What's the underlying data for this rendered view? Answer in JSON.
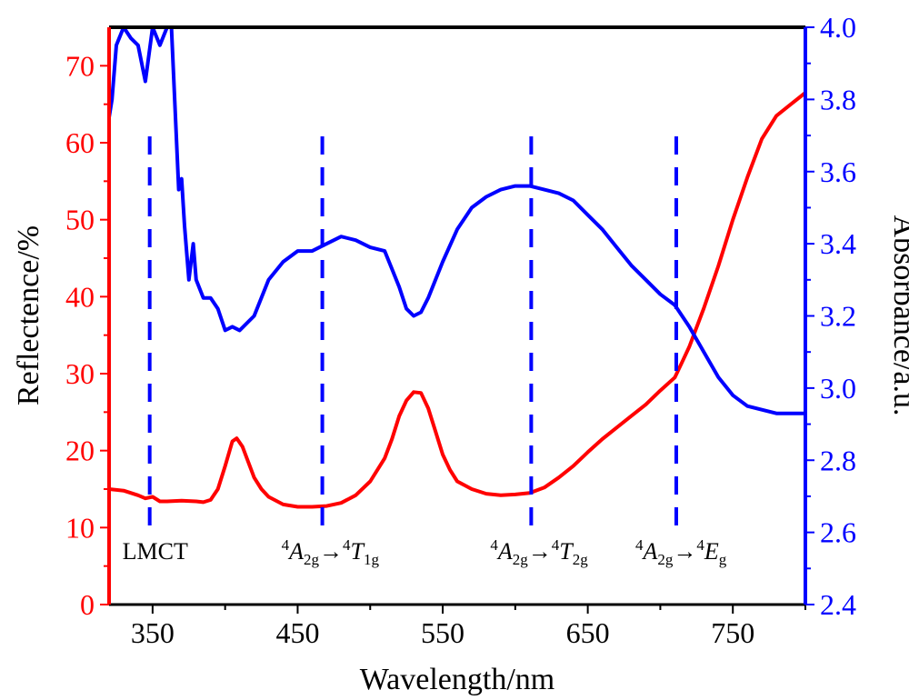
{
  "chart_data": {
    "type": "line",
    "xlabel": "Wavelength/nm",
    "ylabel_left": "Reflectence/%",
    "ylabel_right": "Absorbance/a.u.",
    "xlim": [
      320,
      800
    ],
    "ylim_left": [
      0,
      75
    ],
    "ylim_right": [
      2.4,
      4.0
    ],
    "x_ticks": [
      350,
      450,
      550,
      650,
      750
    ],
    "y_ticks_left": [
      0,
      10,
      20,
      30,
      40,
      50,
      60,
      70
    ],
    "y_ticks_right": [
      2.4,
      2.6,
      2.8,
      3.0,
      3.2,
      3.4,
      3.6,
      3.8,
      4.0
    ],
    "grid": false,
    "colors": {
      "reflectance": "#ff0000",
      "absorbance": "#0000ff",
      "axis": "#000000"
    },
    "series": [
      {
        "axis": "left",
        "color": "#ff0000",
        "x": [
          320,
          330,
          340,
          345,
          350,
          355,
          360,
          370,
          380,
          385,
          390,
          395,
          400,
          405,
          408,
          412,
          416,
          420,
          425,
          430,
          440,
          450,
          460,
          470,
          480,
          490,
          500,
          510,
          515,
          520,
          525,
          530,
          535,
          540,
          545,
          550,
          555,
          560,
          570,
          580,
          590,
          600,
          610,
          620,
          630,
          640,
          650,
          660,
          670,
          680,
          690,
          700,
          710,
          715,
          720,
          725,
          730,
          740,
          750,
          760,
          770,
          780,
          790,
          800
        ],
        "y": [
          15.0,
          14.8,
          14.2,
          13.8,
          14.0,
          13.4,
          13.4,
          13.5,
          13.4,
          13.3,
          13.6,
          15.0,
          18.0,
          21.2,
          21.6,
          20.5,
          18.5,
          16.5,
          15.0,
          14.0,
          13.0,
          12.7,
          12.7,
          12.8,
          13.2,
          14.2,
          16.0,
          19.0,
          21.5,
          24.5,
          26.5,
          27.6,
          27.5,
          25.5,
          22.5,
          19.5,
          17.5,
          16.0,
          15.0,
          14.4,
          14.2,
          14.3,
          14.5,
          15.2,
          16.5,
          18.0,
          19.8,
          21.5,
          23.0,
          24.5,
          26.0,
          27.8,
          29.5,
          31.5,
          33.5,
          36.0,
          38.5,
          44.0,
          50.0,
          55.5,
          60.5,
          63.5,
          65.0,
          66.5
        ]
      },
      {
        "axis": "right",
        "color": "#0000ff",
        "x": [
          320,
          322,
          325,
          330,
          335,
          340,
          345,
          350,
          355,
          360,
          363,
          365,
          368,
          370,
          372,
          375,
          378,
          380,
          385,
          390,
          395,
          400,
          405,
          410,
          420,
          430,
          440,
          450,
          460,
          470,
          480,
          490,
          500,
          510,
          515,
          520,
          525,
          530,
          535,
          540,
          550,
          560,
          570,
          580,
          590,
          600,
          610,
          620,
          630,
          640,
          650,
          660,
          670,
          680,
          690,
          700,
          710,
          720,
          730,
          740,
          750,
          760,
          770,
          780,
          790,
          800
        ],
        "y": [
          3.75,
          3.8,
          3.95,
          4.0,
          3.97,
          3.95,
          3.85,
          4.0,
          3.95,
          4.0,
          4.0,
          3.82,
          3.55,
          3.58,
          3.45,
          3.3,
          3.4,
          3.3,
          3.25,
          3.25,
          3.22,
          3.16,
          3.17,
          3.16,
          3.2,
          3.3,
          3.35,
          3.38,
          3.38,
          3.4,
          3.42,
          3.41,
          3.39,
          3.38,
          3.33,
          3.28,
          3.22,
          3.2,
          3.21,
          3.25,
          3.35,
          3.44,
          3.5,
          3.53,
          3.55,
          3.56,
          3.56,
          3.55,
          3.54,
          3.52,
          3.48,
          3.44,
          3.39,
          3.34,
          3.3,
          3.26,
          3.23,
          3.17,
          3.1,
          3.03,
          2.98,
          2.95,
          2.94,
          2.93,
          2.93,
          2.93
        ]
      }
    ],
    "markers": [
      {
        "x": 348,
        "label_parts": [
          [
            "LMCT",
            ""
          ]
        ]
      },
      {
        "x": 467,
        "label_parts": [
          [
            "4",
            "sup"
          ],
          [
            "A",
            "it"
          ],
          [
            "2g",
            "sub"
          ],
          [
            "→",
            ""
          ],
          [
            "4",
            "sup"
          ],
          [
            "T",
            "it"
          ],
          [
            "1g",
            "sub"
          ]
        ]
      },
      {
        "x": 611,
        "label_parts": [
          [
            "4",
            "sup"
          ],
          [
            "A",
            "it"
          ],
          [
            "2g",
            "sub"
          ],
          [
            "→",
            ""
          ],
          [
            "4",
            "sup"
          ],
          [
            "T",
            "it"
          ],
          [
            "2g",
            "sub"
          ]
        ]
      },
      {
        "x": 711,
        "label_parts": [
          [
            "4",
            "sup"
          ],
          [
            "A",
            "it"
          ],
          [
            "2g",
            "sub"
          ],
          [
            "→",
            ""
          ],
          [
            "4",
            "sup"
          ],
          [
            "E",
            "it"
          ],
          [
            "g",
            "sub"
          ]
        ]
      }
    ]
  }
}
